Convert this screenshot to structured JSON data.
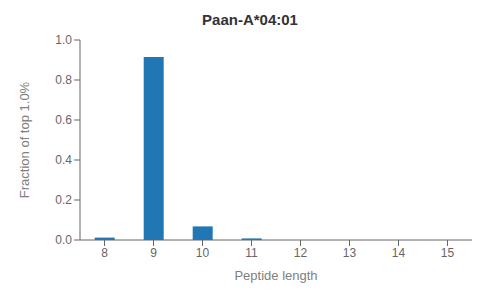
{
  "chart_data": {
    "type": "bar",
    "title": "Paan-A*04:01",
    "xlabel": "Peptide length",
    "ylabel": "Fraction of top 1.0%",
    "x": [
      8,
      9,
      10,
      11,
      12,
      13,
      14,
      15
    ],
    "values": [
      0.012,
      0.915,
      0.068,
      0.008,
      0.0,
      0.0,
      0.0,
      0.0
    ],
    "color": "#2077b4",
    "xlim": [
      7.5,
      15.5
    ],
    "xticks": [
      8,
      9,
      10,
      11,
      12,
      13,
      14,
      15
    ],
    "ylim": [
      0,
      1.0
    ],
    "yticks": [
      {
        "value": 0,
        "label": "0.0"
      },
      0.2,
      0.4,
      0.6,
      0.8,
      {
        "value": 1.0,
        "label": "1.0"
      }
    ],
    "grid": false
  }
}
